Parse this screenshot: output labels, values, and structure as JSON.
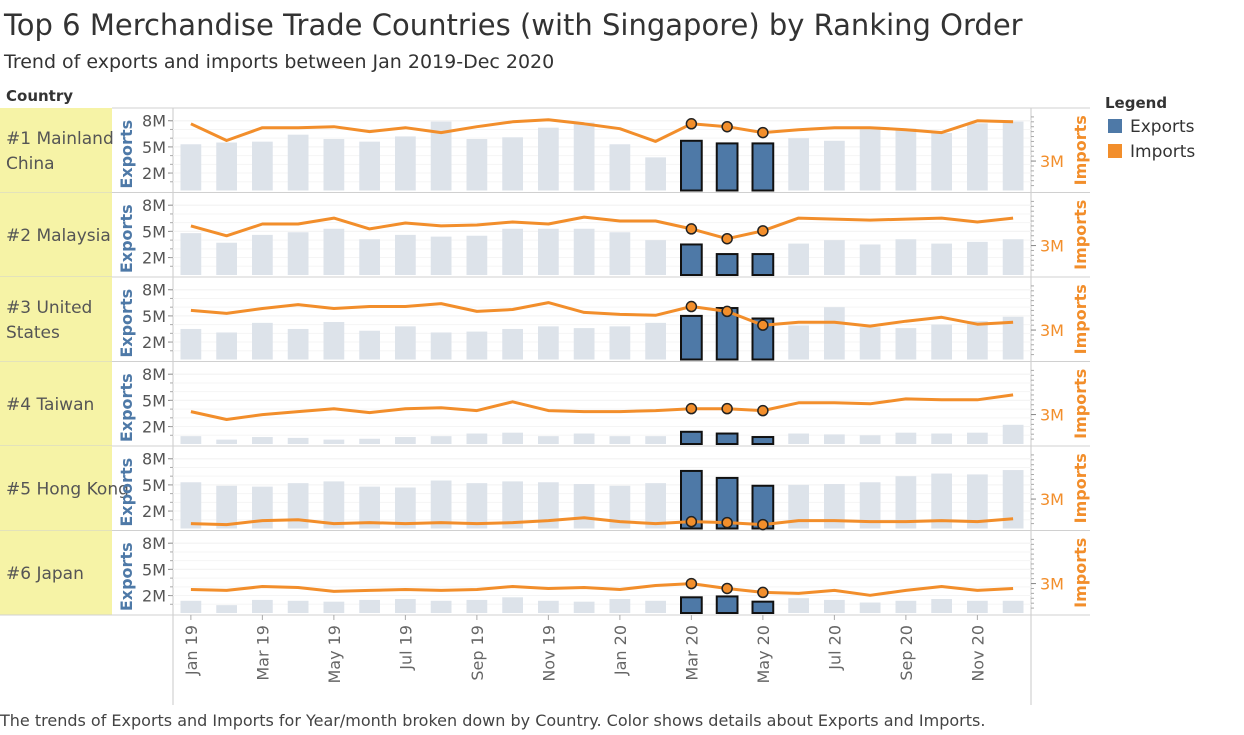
{
  "title": "Top 6 Merchandise Trade Countries (with Singapore) by Ranking Order",
  "subtitle": "Trend of exports and imports between Jan 2019-Dec 2020",
  "country_header": "Country",
  "legend": {
    "title": "Legend",
    "items": [
      {
        "label": "Exports",
        "color": "#4e79a7"
      },
      {
        "label": "Imports",
        "color": "#f28e2b"
      }
    ]
  },
  "caption": "The trends of Exports and Imports for Year/month broken down by Country.  Color shows details about Exports and Imports.",
  "colors": {
    "country_band": "#f6f3a6",
    "exports_highlight": "#4e79a7",
    "exports_dim": "#dde3ea",
    "imports": "#f28e2b",
    "exports_axis_label": "#4e79a7",
    "imports_axis_label": "#f28e2b"
  },
  "chart_data": {
    "type": "bar",
    "left_axis_label": "Exports",
    "right_axis_label": "Imports",
    "left_ticks": [
      "8M",
      "5M",
      "2M"
    ],
    "left_tick_values": [
      8000000,
      5000000,
      2000000
    ],
    "right_ticks": [
      "3M"
    ],
    "right_tick_values": [
      3000000
    ],
    "left_range": [
      0,
      9000000
    ],
    "right_range": [
      0,
      8000000
    ],
    "x": [
      "Jan 19",
      "Feb 19",
      "Mar 19",
      "Apr 19",
      "May 19",
      "Jun 19",
      "Jul 19",
      "Aug 19",
      "Sep 19",
      "Oct 19",
      "Nov 19",
      "Dec 19",
      "Jan 20",
      "Feb 20",
      "Mar 20",
      "Apr 20",
      "May 20",
      "Jun 20",
      "Jul 20",
      "Aug 20",
      "Sep 20",
      "Oct 20",
      "Nov 20",
      "Dec 20"
    ],
    "x_tick_labels": [
      "Jan 19",
      "Mar 19",
      "May 19",
      "Jul 19",
      "Sep 19",
      "Nov 19",
      "Jan 20",
      "Mar 20",
      "May 20",
      "Jul 20",
      "Sep 20",
      "Nov 20"
    ],
    "x_tick_indices": [
      0,
      2,
      4,
      6,
      8,
      10,
      12,
      14,
      16,
      18,
      20,
      22
    ],
    "highlighted_months": [
      "Mar 20",
      "Apr 20",
      "May 20"
    ],
    "rows": [
      {
        "label": "#1 Mainland China",
        "exports": [
          5.3,
          5.5,
          5.6,
          6.4,
          5.9,
          5.6,
          6.2,
          7.9,
          5.9,
          6.1,
          7.2,
          7.8,
          5.3,
          3.8,
          5.7,
          5.4,
          5.4,
          6.0,
          5.7,
          7.3,
          7.1,
          6.6,
          7.7,
          7.9
        ],
        "imports": [
          6.8,
          5.1,
          6.4,
          6.4,
          6.5,
          6.0,
          6.4,
          5.9,
          6.5,
          7.0,
          7.2,
          6.8,
          6.3,
          5.0,
          6.8,
          6.5,
          5.9,
          6.2,
          6.4,
          6.4,
          6.2,
          5.9,
          7.1,
          7.0
        ]
      },
      {
        "label": "#2 Malaysia",
        "exports": [
          4.8,
          3.7,
          4.6,
          4.9,
          5.3,
          4.1,
          4.6,
          4.4,
          4.5,
          5.3,
          5.3,
          5.3,
          4.9,
          4.0,
          3.5,
          2.4,
          2.4,
          3.6,
          4.0,
          3.5,
          4.1,
          3.6,
          3.8,
          4.1
        ],
        "imports": [
          5.0,
          4.0,
          5.2,
          5.2,
          5.8,
          4.7,
          5.3,
          5.0,
          5.1,
          5.4,
          5.2,
          5.9,
          5.5,
          5.5,
          4.7,
          3.7,
          4.5,
          5.8,
          5.7,
          5.6,
          5.7,
          5.8,
          5.4,
          5.8
        ]
      },
      {
        "label": "#3 United States",
        "exports": [
          3.5,
          3.1,
          4.2,
          3.5,
          4.3,
          3.3,
          3.8,
          3.1,
          3.2,
          3.5,
          3.8,
          3.6,
          3.8,
          4.2,
          5.0,
          5.9,
          4.7,
          3.9,
          6.0,
          3.7,
          3.6,
          4.0,
          4.4,
          4.9
        ],
        "imports": [
          5.0,
          4.7,
          5.2,
          5.6,
          5.2,
          5.4,
          5.4,
          5.7,
          4.9,
          5.1,
          5.8,
          4.8,
          4.6,
          4.5,
          5.4,
          4.9,
          3.5,
          3.8,
          3.8,
          3.4,
          3.9,
          4.3,
          3.6,
          3.8
        ]
      },
      {
        "label": "#4 Taiwan",
        "exports": [
          0.9,
          0.5,
          0.8,
          0.7,
          0.5,
          0.6,
          0.8,
          0.9,
          1.2,
          1.3,
          0.9,
          1.2,
          0.9,
          0.9,
          1.4,
          1.2,
          0.8,
          1.2,
          1.1,
          1.0,
          1.3,
          1.2,
          1.3,
          2.2
        ],
        "imports": [
          3.3,
          2.5,
          3.0,
          3.3,
          3.6,
          3.2,
          3.6,
          3.7,
          3.4,
          4.3,
          3.4,
          3.3,
          3.3,
          3.4,
          3.6,
          3.6,
          3.4,
          4.2,
          4.2,
          4.1,
          4.6,
          4.5,
          4.5,
          5.0
        ]
      },
      {
        "label": "#5 Hong Kong",
        "exports": [
          5.3,
          4.9,
          4.8,
          5.2,
          5.4,
          4.8,
          4.7,
          5.5,
          5.2,
          5.4,
          5.3,
          5.1,
          4.9,
          5.2,
          6.6,
          5.8,
          4.9,
          5.0,
          5.1,
          5.3,
          6.0,
          6.3,
          6.2,
          6.7
        ],
        "imports": [
          0.5,
          0.4,
          0.8,
          0.9,
          0.5,
          0.6,
          0.5,
          0.6,
          0.5,
          0.6,
          0.8,
          1.1,
          0.7,
          0.5,
          0.7,
          0.6,
          0.4,
          0.8,
          0.8,
          0.7,
          0.7,
          0.8,
          0.7,
          1.0
        ]
      },
      {
        "label": "#6 Japan",
        "exports": [
          1.4,
          0.9,
          1.5,
          1.4,
          1.3,
          1.5,
          1.6,
          1.4,
          1.5,
          1.8,
          1.4,
          1.3,
          1.6,
          1.4,
          1.8,
          1.9,
          1.3,
          1.7,
          1.5,
          1.2,
          1.4,
          1.6,
          1.4,
          1.4
        ],
        "imports": [
          2.4,
          2.3,
          2.7,
          2.6,
          2.2,
          2.3,
          2.4,
          2.3,
          2.4,
          2.7,
          2.5,
          2.6,
          2.4,
          2.8,
          3.0,
          2.5,
          2.1,
          2.0,
          2.3,
          1.8,
          2.3,
          2.7,
          2.3,
          2.5
        ]
      }
    ],
    "value_unit_note": "",
    "grid": true,
    "legend_position": "right"
  }
}
